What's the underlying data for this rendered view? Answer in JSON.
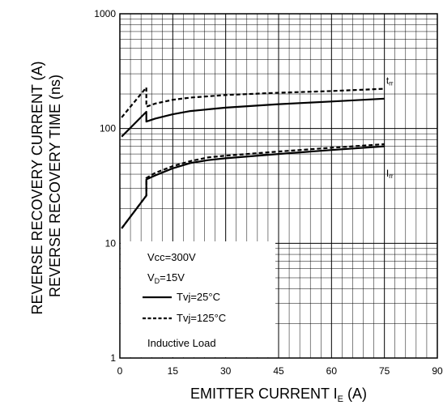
{
  "chart_data": {
    "type": "line",
    "xlabel_main": "EMITTER CURRENT I",
    "xlabel_sub": "E",
    "xlabel_unit": " (A)",
    "ylabel_lines": [
      "REVERSE RECOVERY CURRENT (A)",
      "REVERSE RECOVERY TIME (ns)"
    ],
    "xlim": [
      0,
      90
    ],
    "ylim": [
      1,
      1000
    ],
    "yscale": "log",
    "grid": true,
    "xticks": [
      "0",
      "15",
      "30",
      "45",
      "60",
      "75",
      "90"
    ],
    "yticks": [
      "1",
      "10",
      "100",
      "1000"
    ],
    "xtick_values": [
      0,
      15,
      30,
      45,
      60,
      75,
      90
    ],
    "ytick_values": [
      1,
      10,
      100,
      1000
    ],
    "series": [
      {
        "group": "trr",
        "style": "solid",
        "x": [
          0.5,
          7.5,
          7.5,
          10,
          15,
          20,
          30,
          45,
          60,
          75
        ],
        "y": [
          85,
          140,
          115,
          122,
          133,
          142,
          152,
          163,
          172,
          182
        ]
      },
      {
        "group": "trr",
        "style": "dashed",
        "x": [
          0.5,
          7.5,
          7.5,
          10,
          15,
          20,
          30,
          45,
          60,
          75
        ],
        "y": [
          125,
          228,
          155,
          165,
          178,
          186,
          196,
          205,
          212,
          222
        ]
      },
      {
        "group": "Irr",
        "style": "solid",
        "x": [
          0.5,
          7.5,
          7.5,
          10,
          15,
          20,
          25,
          30,
          45,
          60,
          75
        ],
        "y": [
          13.5,
          26,
          36,
          39,
          45,
          50,
          53,
          55,
          60,
          65,
          70
        ]
      },
      {
        "group": "Irr",
        "style": "dashed",
        "x": [
          0.5,
          7.5,
          7.5,
          10,
          15,
          20,
          25,
          30,
          45,
          60,
          75
        ],
        "y": [
          13.5,
          26,
          37,
          41,
          47,
          52,
          56,
          58,
          63,
          68,
          73
        ]
      }
    ],
    "series_labels": [
      {
        "main": "t",
        "sub": "rr",
        "x": 75.5,
        "y": 245
      },
      {
        "main": "I",
        "sub": "rr",
        "x": 75.5,
        "y": 38
      }
    ],
    "legend": {
      "placement": "bottom-left",
      "vcc": "Vcc=300V",
      "vd_main": "V",
      "vd_sub": "D",
      "vd_rest": "=15V",
      "entries": [
        {
          "label": "Tvj=25°C",
          "style": "solid"
        },
        {
          "label": "Tvj=125°C",
          "style": "dashed"
        }
      ],
      "note": "Inductive Load"
    }
  }
}
